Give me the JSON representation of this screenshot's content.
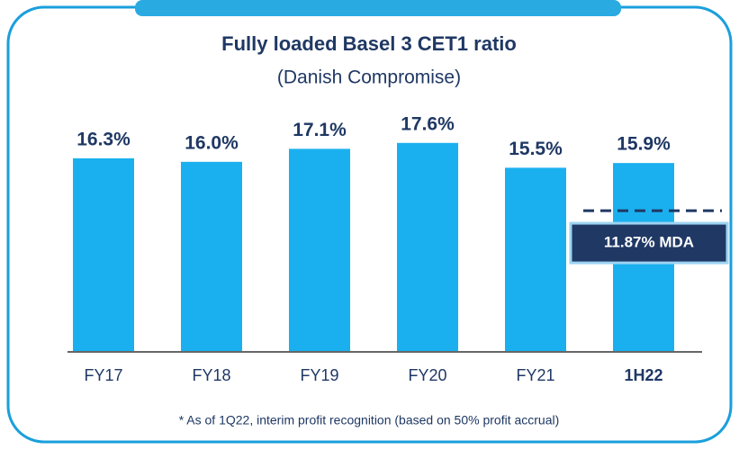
{
  "chart_data": {
    "type": "bar",
    "title": "Fully loaded Basel 3 CET1 ratio",
    "subtitle": "(Danish Compromise)",
    "categories": [
      "FY17",
      "FY18",
      "FY19",
      "FY20",
      "FY21",
      "1H22"
    ],
    "values": [
      16.3,
      16.0,
      17.1,
      17.6,
      15.5,
      15.9
    ],
    "value_labels": [
      "16.3%",
      "16.0%",
      "17.1%",
      "17.6%",
      "15.5%",
      "15.9%"
    ],
    "color": "#1ab0ef",
    "ylim": [
      0,
      22
    ],
    "reference_line": {
      "value": 11.87,
      "label": "11.87% MDA"
    },
    "footnote": "* As of 1Q22, interim profit recognition (based on 50% profit accrual)"
  }
}
